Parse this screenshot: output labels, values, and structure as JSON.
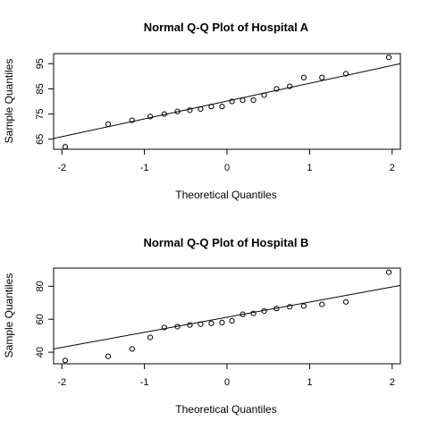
{
  "chart_data": [
    {
      "type": "scatter",
      "title": "Normal Q-Q Plot of Hospital A",
      "xlabel": "Theoretical Quantiles",
      "ylabel": "Sample Quantiles",
      "xlim": [
        -2.1,
        2.1
      ],
      "ylim": [
        61,
        99
      ],
      "xticks": [
        -2,
        -1,
        0,
        1,
        2
      ],
      "xtick_labels": [
        "-2",
        "-1",
        "0",
        "1",
        "2"
      ],
      "yticks": [
        65,
        75,
        85,
        95
      ],
      "ytick_labels": [
        "65",
        "75",
        "85",
        "95"
      ],
      "grid": false,
      "reference_line": {
        "x1": -2.1,
        "y1": 65.3,
        "x2": 2.1,
        "y2": 95.0
      },
      "points": [
        {
          "x": -1.96,
          "y": 62.0
        },
        {
          "x": -1.44,
          "y": 71.0
        },
        {
          "x": -1.15,
          "y": 72.5
        },
        {
          "x": -0.93,
          "y": 74.0
        },
        {
          "x": -0.76,
          "y": 75.0
        },
        {
          "x": -0.6,
          "y": 76.0
        },
        {
          "x": -0.45,
          "y": 76.5
        },
        {
          "x": -0.32,
          "y": 77.0
        },
        {
          "x": -0.19,
          "y": 78.0
        },
        {
          "x": -0.06,
          "y": 78.0
        },
        {
          "x": 0.06,
          "y": 80.0
        },
        {
          "x": 0.19,
          "y": 80.5
        },
        {
          "x": 0.32,
          "y": 80.5
        },
        {
          "x": 0.45,
          "y": 82.5
        },
        {
          "x": 0.6,
          "y": 85.0
        },
        {
          "x": 0.76,
          "y": 86.0
        },
        {
          "x": 0.93,
          "y": 89.5
        },
        {
          "x": 1.15,
          "y": 89.5
        },
        {
          "x": 1.44,
          "y": 91.0
        },
        {
          "x": 1.96,
          "y": 97.5
        }
      ]
    },
    {
      "type": "scatter",
      "title": "Normal Q-Q Plot of Hospital B",
      "xlabel": "Theoretical Quantiles",
      "ylabel": "Sample Quantiles",
      "xlim": [
        -2.1,
        2.1
      ],
      "ylim": [
        33,
        91
      ],
      "xticks": [
        -2,
        -1,
        0,
        1,
        2
      ],
      "xtick_labels": [
        "-2",
        "-1",
        "0",
        "1",
        "2"
      ],
      "yticks": [
        40,
        60,
        80
      ],
      "ytick_labels": [
        "40",
        "60",
        "80"
      ],
      "grid": false,
      "reference_line": {
        "x1": -2.1,
        "y1": 42.0,
        "x2": 2.1,
        "y2": 80.5
      },
      "points": [
        {
          "x": -1.96,
          "y": 35.0
        },
        {
          "x": -1.44,
          "y": 37.5
        },
        {
          "x": -1.15,
          "y": 42.0
        },
        {
          "x": -0.93,
          "y": 49.0
        },
        {
          "x": -0.76,
          "y": 55.0
        },
        {
          "x": -0.6,
          "y": 55.5
        },
        {
          "x": -0.45,
          "y": 56.5
        },
        {
          "x": -0.32,
          "y": 57.0
        },
        {
          "x": -0.19,
          "y": 57.5
        },
        {
          "x": -0.06,
          "y": 58.0
        },
        {
          "x": 0.06,
          "y": 59.0
        },
        {
          "x": 0.19,
          "y": 63.0
        },
        {
          "x": 0.32,
          "y": 63.5
        },
        {
          "x": 0.45,
          "y": 65.0
        },
        {
          "x": 0.6,
          "y": 66.5
        },
        {
          "x": 0.76,
          "y": 67.5
        },
        {
          "x": 0.93,
          "y": 68.0
        },
        {
          "x": 1.15,
          "y": 69.0
        },
        {
          "x": 1.44,
          "y": 70.5
        },
        {
          "x": 1.96,
          "y": 88.5
        }
      ]
    }
  ]
}
